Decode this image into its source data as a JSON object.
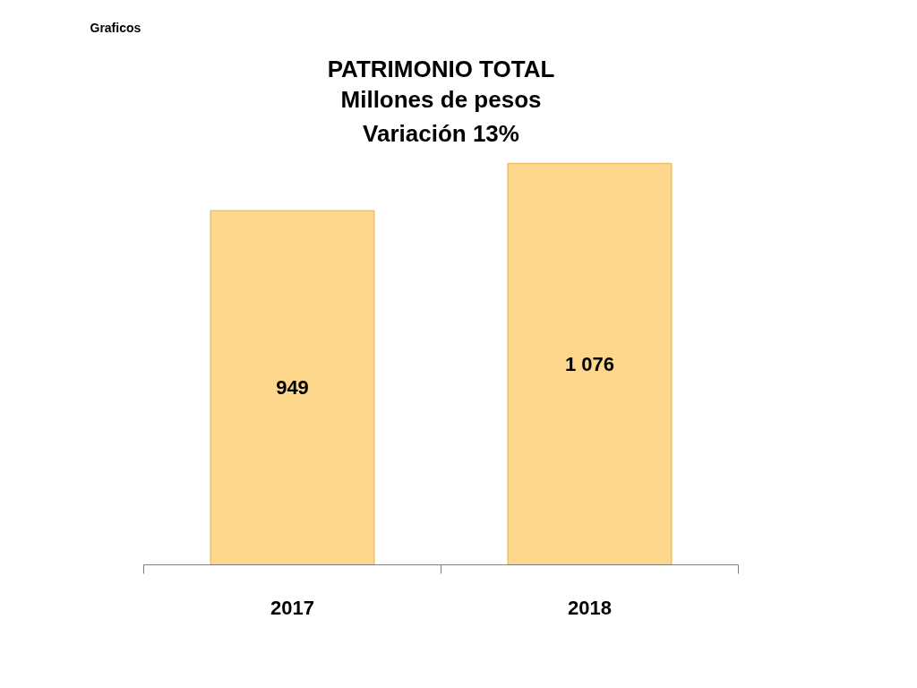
{
  "chart_data": {
    "type": "bar",
    "title": "PATRIMONIO TOTAL",
    "subtitle": "Millones de pesos\nVariación 13%",
    "annotations": [
      "Graficos"
    ],
    "categories": [
      "2017",
      "2018"
    ],
    "values": [
      949,
      1076
    ],
    "value_labels": [
      "949",
      "1 076"
    ],
    "color": "#fdd88c",
    "tick_labels": "x"
  }
}
